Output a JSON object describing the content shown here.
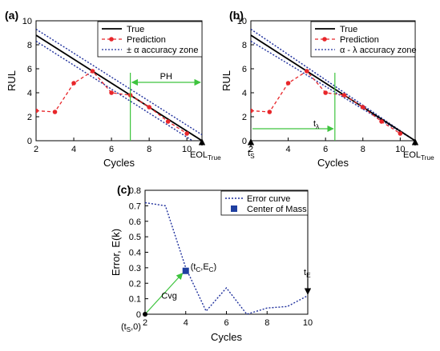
{
  "chart_data": [
    {
      "type": "line",
      "panel": "(a)",
      "xlabel": "Cycles",
      "ylabel": "RUL",
      "xlim": [
        2,
        10.8
      ],
      "ylim": [
        0,
        10
      ],
      "xticks": [
        "2",
        "4",
        "6",
        "8",
        "10"
      ],
      "yticks": [
        "0",
        "2",
        "4",
        "6",
        "8",
        "10"
      ],
      "eol_label": "EOL",
      "eol_sub": "True",
      "ph_label": "PH",
      "legend_position": "top-right",
      "series": [
        {
          "name": "True",
          "color": "#000000",
          "style": "solid",
          "x": [
            2,
            10.8
          ],
          "y": [
            8.8,
            0
          ]
        },
        {
          "name": "Prediction",
          "color": "#e8262a",
          "style": "dashed",
          "markers": true,
          "x": [
            2,
            3,
            4,
            5,
            6,
            7,
            8,
            9,
            10
          ],
          "y": [
            2.5,
            2.4,
            4.8,
            5.8,
            4.0,
            3.8,
            2.8,
            1.6,
            0.6
          ]
        },
        {
          "name": "± α accuracy zone",
          "color": "#1e2f9c",
          "style": "dotted",
          "lines": [
            {
              "x": [
                2,
                10.8
              ],
              "y": [
                9.3,
                0.5
              ]
            },
            {
              "x": [
                2,
                10.8
              ],
              "y": [
                8.3,
                -0.5
              ]
            }
          ]
        }
      ],
      "vertical_marker_x": 7
    },
    {
      "type": "line",
      "panel": "(b)",
      "xlabel": "Cycles",
      "ylabel": "RUL",
      "xlim": [
        2,
        10.8
      ],
      "ylim": [
        0,
        10
      ],
      "xticks": [
        "2",
        "4",
        "6",
        "8",
        "10"
      ],
      "yticks": [
        "0",
        "2",
        "4",
        "6",
        "8",
        "10"
      ],
      "eol_label": "EOL",
      "eol_sub": "True",
      "ts_label": "t",
      "ts_sub": "S",
      "tl_label": "t",
      "tl_sub": "λ",
      "legend_position": "top-right",
      "series": [
        {
          "name": "True",
          "color": "#000000",
          "style": "solid",
          "x": [
            2,
            10.8
          ],
          "y": [
            8.8,
            0
          ]
        },
        {
          "name": "Prediction",
          "color": "#e8262a",
          "style": "dashed",
          "markers": true,
          "x": [
            2,
            3,
            4,
            5,
            6,
            7,
            8,
            9,
            10
          ],
          "y": [
            2.5,
            2.4,
            4.8,
            5.8,
            4.0,
            3.8,
            2.8,
            1.6,
            0.6
          ]
        },
        {
          "name": "α - λ accuracy zone",
          "color": "#1e2f9c",
          "style": "dotted",
          "lines": [
            {
              "x": [
                2,
                10.8
              ],
              "y": [
                9.3,
                0
              ]
            },
            {
              "x": [
                2,
                10.8
              ],
              "y": [
                8.3,
                0
              ]
            }
          ]
        }
      ],
      "vertical_marker_x": 6.5
    },
    {
      "type": "line",
      "panel": "(c)",
      "xlabel": "Cycles",
      "ylabel": "Error, E(k)",
      "xlim": [
        2,
        10
      ],
      "ylim": [
        0,
        0.8
      ],
      "xticks": [
        "2",
        "4",
        "6",
        "8",
        "10"
      ],
      "yticks": [
        "0",
        "0.1",
        "0.2",
        "0.3",
        "0.4",
        "0.5",
        "0.6",
        "0.7",
        "0.8"
      ],
      "legend_position": "top-right",
      "series": [
        {
          "name": "Error curve",
          "color": "#1e2f9c",
          "style": "dotted",
          "x": [
            2,
            3,
            4,
            5,
            6,
            7,
            8,
            9,
            10
          ],
          "y": [
            0.72,
            0.7,
            0.3,
            0.02,
            0.17,
            0.0,
            0.04,
            0.05,
            0.12
          ]
        },
        {
          "name": "Center of Mass",
          "color": "#1f3fa0",
          "style": "marker-square",
          "x": [
            4
          ],
          "y": [
            0.28
          ]
        }
      ],
      "cvg_label": "Cvg",
      "cvg_arrow": {
        "from": [
          2,
          0
        ],
        "to": [
          4,
          0.28
        ]
      },
      "center_label": "(t",
      "center_label_sub1": "C",
      "center_label_mid": ",E",
      "center_label_sub2": "C",
      "center_label_end": ")",
      "origin_label": "(t",
      "origin_sub": "S",
      "origin_end": ",0)",
      "te_label": "t",
      "te_sub": "E"
    }
  ],
  "panel_labels": {
    "a": "(a)",
    "b": "(b)",
    "c": "(c)"
  }
}
